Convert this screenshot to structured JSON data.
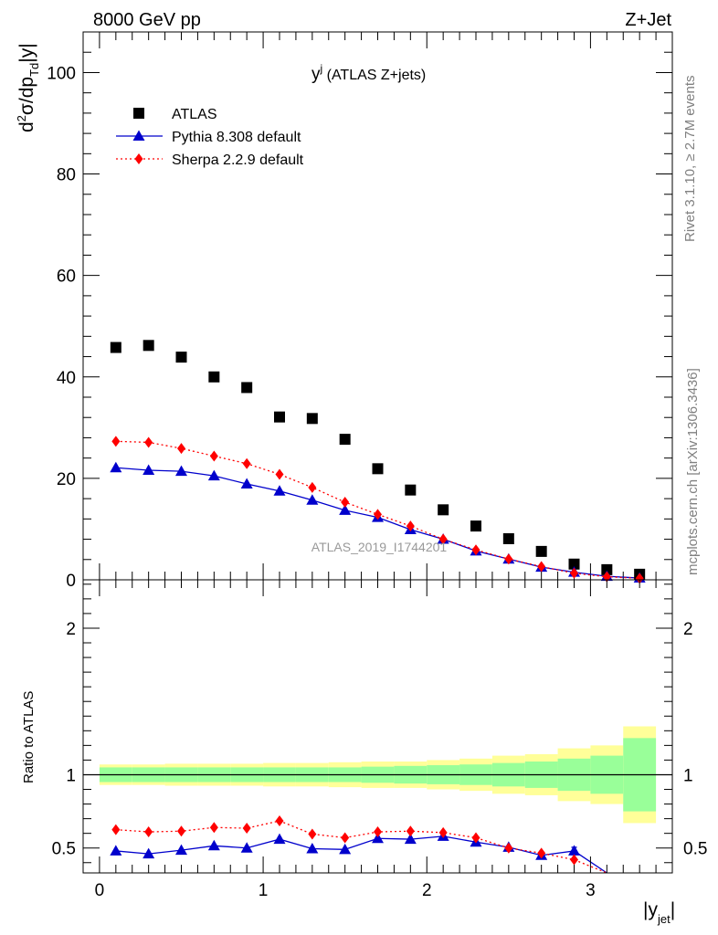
{
  "header": {
    "left": "8000 GeV pp",
    "right": "Z+Jet"
  },
  "side_labels": {
    "rivet": "Rivet 3.1.10, ≥ 2.7M events",
    "mcplots": "mcplots.cern.ch [arXiv:1306.3436]"
  },
  "watermark": "ATLAS_2019_I1744201",
  "colors": {
    "atlas": "#000000",
    "pythia": "#0000cc",
    "sherpa": "#ff0000",
    "band_inner": "#99ff99",
    "band_outer": "#ffff99"
  },
  "chart_data": [
    {
      "type": "scatter",
      "title_main": "y",
      "title_sup": "j",
      "title_rest": " (ATLAS Z+jets)",
      "ylabel_main": "d",
      "ylabel_sup": "2",
      "ylabel_mid": "σ/dp",
      "ylabel_sub": "Td",
      "ylabel_end": "|y|",
      "xlim": [
        -0.1,
        3.5
      ],
      "ylim": [
        0,
        108
      ],
      "yticks": [
        0,
        20,
        40,
        60,
        80,
        100
      ],
      "x": [
        0.1,
        0.3,
        0.5,
        0.7,
        0.9,
        1.1,
        1.3,
        1.5,
        1.7,
        1.9,
        2.1,
        2.3,
        2.5,
        2.7,
        2.9,
        3.1,
        3.3
      ],
      "series": [
        {
          "name": "ATLAS",
          "style": "data",
          "values": [
            45.8,
            46.2,
            43.9,
            40.0,
            37.9,
            32.1,
            31.8,
            27.7,
            21.9,
            17.7,
            13.8,
            10.6,
            8.1,
            5.6,
            3.1,
            2.0,
            1.1
          ]
        },
        {
          "name": "Pythia 8.308 default",
          "style": "pythia",
          "values": [
            22.1,
            21.6,
            21.4,
            20.5,
            18.9,
            17.5,
            15.7,
            13.7,
            12.3,
            9.9,
            8.0,
            5.7,
            4.1,
            2.5,
            1.5,
            0.7,
            0.35
          ]
        },
        {
          "name": "Sherpa 2.2.9 default",
          "style": "sherpa",
          "values": [
            27.3,
            27.1,
            25.9,
            24.4,
            22.9,
            20.8,
            18.2,
            15.3,
            12.9,
            10.6,
            8.0,
            5.9,
            4.1,
            2.6,
            1.3,
            0.6,
            0.3
          ]
        }
      ]
    },
    {
      "type": "line",
      "ylabel": "Ratio to ATLAS",
      "xlabel_main": "|y",
      "xlabel_sub": "jet",
      "xlabel_end": "|",
      "xlim": [
        -0.1,
        3.5
      ],
      "ylim": [
        0.33,
        2.33
      ],
      "yticks": [
        0.5,
        1,
        2
      ],
      "ytick_labels": [
        "0.5",
        "1",
        "2"
      ],
      "xticks": [
        0,
        1,
        2,
        3
      ],
      "xtick_labels": [
        "0",
        "1",
        "2",
        "3"
      ],
      "x": [
        0.1,
        0.3,
        0.5,
        0.7,
        0.9,
        1.1,
        1.3,
        1.5,
        1.7,
        1.9,
        2.1,
        2.3,
        2.5,
        2.7,
        2.9,
        3.1,
        3.3
      ],
      "bin_edges": [
        0.0,
        0.2,
        0.4,
        0.6,
        0.8,
        1.0,
        1.2,
        1.4,
        1.6,
        1.8,
        2.0,
        2.2,
        2.4,
        2.6,
        2.8,
        3.0,
        3.2,
        3.4
      ],
      "band_inner": [
        0.05,
        0.05,
        0.05,
        0.05,
        0.05,
        0.05,
        0.05,
        0.05,
        0.055,
        0.06,
        0.065,
        0.07,
        0.08,
        0.09,
        0.11,
        0.13,
        0.25
      ],
      "band_outer": [
        0.07,
        0.07,
        0.075,
        0.075,
        0.075,
        0.08,
        0.08,
        0.085,
        0.09,
        0.09,
        0.1,
        0.11,
        0.13,
        0.14,
        0.18,
        0.2,
        0.33
      ],
      "series": [
        {
          "name": "Pythia 8.308 default",
          "style": "pythia",
          "values": [
            0.48,
            0.46,
            0.485,
            0.515,
            0.5,
            0.56,
            0.495,
            0.49,
            0.565,
            0.56,
            0.58,
            0.54,
            0.505,
            0.45,
            0.48,
            0.33,
            null
          ],
          "errors": [
            0,
            0,
            0,
            0,
            0,
            0,
            0,
            0,
            0,
            0,
            0,
            0,
            0,
            0,
            0.025,
            0,
            0
          ]
        },
        {
          "name": "Sherpa 2.2.9 default",
          "style": "sherpa",
          "values": [
            0.625,
            0.61,
            0.615,
            0.64,
            0.635,
            0.685,
            0.595,
            0.57,
            0.61,
            0.615,
            0.605,
            0.57,
            0.5,
            0.465,
            0.42,
            0.33,
            null
          ],
          "errors": [
            0,
            0,
            0,
            0,
            0,
            0,
            0,
            0,
            0,
            0,
            0,
            0,
            0,
            0,
            0,
            0,
            0
          ]
        }
      ]
    }
  ]
}
